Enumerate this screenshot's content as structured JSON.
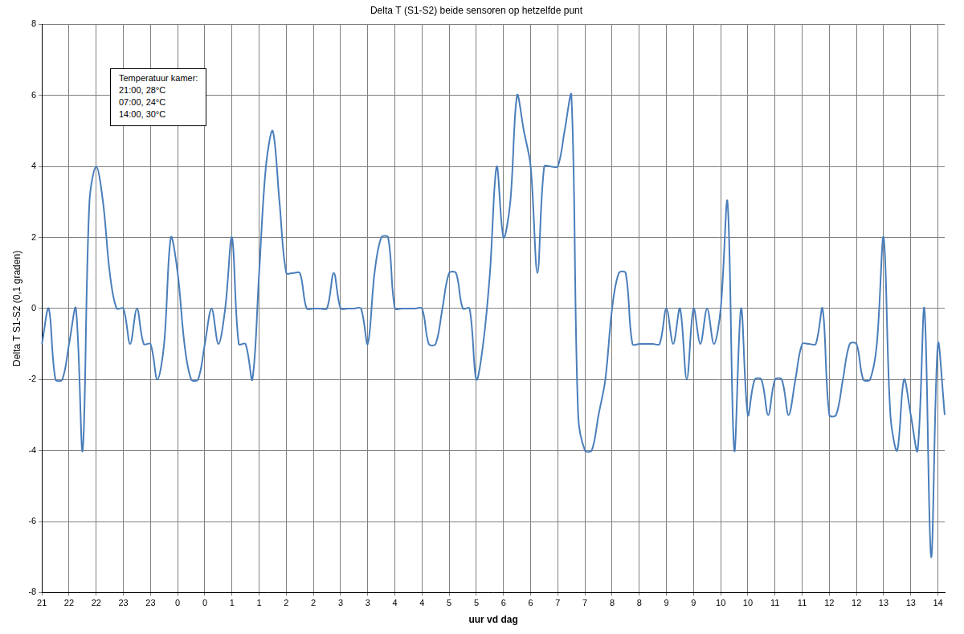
{
  "chart_data": {
    "type": "line",
    "title": "Delta T (S1-S2) beide sensoren op hetzelfde punt",
    "x_label": "uur vd dag",
    "y_label": "Delta T S1-S2 (0,1 graden)",
    "annotation": [
      "Temperatuur kamer:",
      "21:00, 28°C",
      "07:00, 24°C",
      "14:00, 30°C"
    ],
    "categories": [
      "21",
      null,
      null,
      null,
      "22",
      null,
      null,
      null,
      "22",
      null,
      null,
      null,
      "23",
      null,
      null,
      null,
      "23",
      null,
      null,
      null,
      "0",
      null,
      null,
      null,
      "0",
      null,
      null,
      null,
      "1",
      null,
      null,
      null,
      "1",
      null,
      null,
      null,
      "2",
      null,
      null,
      null,
      "2",
      null,
      null,
      null,
      "3",
      null,
      null,
      null,
      "3",
      null,
      null,
      null,
      "4",
      null,
      null,
      null,
      "4",
      null,
      null,
      null,
      "5",
      null,
      null,
      null,
      "5",
      null,
      null,
      null,
      "6",
      null,
      null,
      null,
      "6",
      null,
      null,
      null,
      "7",
      null,
      null,
      null,
      "7",
      null,
      null,
      null,
      "8",
      null,
      null,
      null,
      "8",
      null,
      null,
      null,
      "9",
      null,
      null,
      null,
      "9",
      null,
      null,
      null,
      "10",
      null,
      null,
      null,
      "10",
      null,
      null,
      null,
      "11",
      null,
      null,
      null,
      "11",
      null,
      null,
      null,
      "12",
      null,
      null,
      null,
      "12",
      null,
      null,
      null,
      "13",
      null,
      null,
      null,
      "13",
      null,
      null,
      null,
      "14",
      null
    ],
    "values": [
      -1,
      0,
      -2,
      -2,
      -1,
      0,
      -4,
      3,
      4,
      3,
      1,
      0,
      0,
      -1,
      0,
      -1,
      -1,
      -2,
      -1,
      2,
      1,
      -1,
      -2,
      -2,
      -1,
      0,
      -1,
      0,
      2,
      -1,
      -1,
      -2,
      1,
      4,
      5,
      3,
      1,
      1,
      1,
      0,
      0,
      0,
      0,
      1,
      0,
      0,
      0,
      0,
      -1,
      1,
      2,
      2,
      0,
      0,
      0,
      0,
      0,
      -1,
      -1,
      0,
      1,
      1,
      0,
      0,
      -2,
      -1,
      1,
      4,
      2,
      3,
      6,
      5,
      4,
      1,
      4,
      4,
      4,
      5,
      6,
      -3,
      -4,
      -4,
      -3,
      -2,
      0,
      1,
      1,
      -1,
      -1,
      -1,
      -1,
      -1,
      0,
      -1,
      0,
      -2,
      0,
      -1,
      0,
      -1,
      0,
      3,
      -4,
      0,
      -3,
      -2,
      -2,
      -3,
      -2,
      -2,
      -3,
      -2,
      -1,
      -1,
      -1,
      0,
      -3,
      -3,
      -2,
      -1,
      -1,
      -2,
      -2,
      -1,
      2,
      -3,
      -4,
      -2,
      -3,
      -4,
      0,
      -7,
      -1,
      -3
    ],
    "color": "#4a7ebb",
    "ylim": [
      -8,
      8
    ],
    "yticks": [
      -8,
      -6,
      -4,
      -2,
      0,
      2,
      4,
      6,
      8
    ],
    "grid": true
  }
}
